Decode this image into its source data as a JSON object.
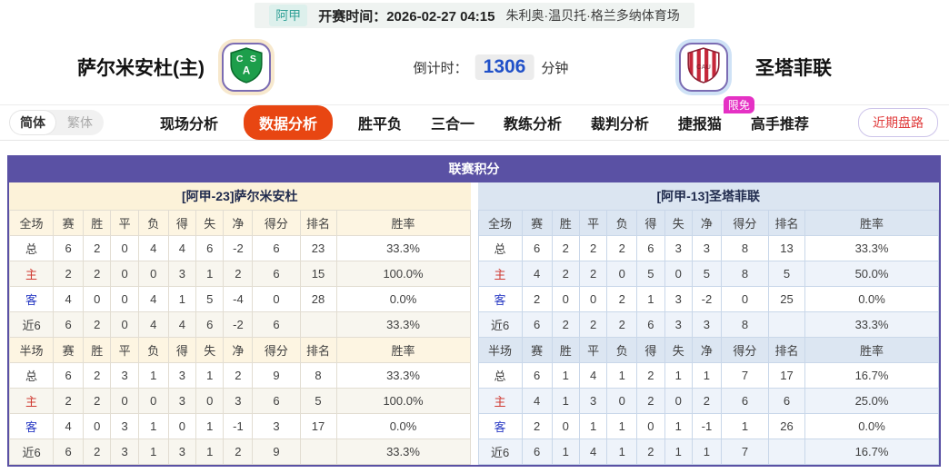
{
  "top_bar": {
    "league": "阿甲",
    "kickoff_label": "开赛时间：",
    "kickoff_time": "2026-02-27 04:15",
    "venue": "朱利奥·温贝托·格兰多纳体育场"
  },
  "header": {
    "home_team": "萨尔米安杜(主)",
    "away_team": "圣塔菲联",
    "countdown_label": "倒计时：",
    "countdown_value": "1306",
    "countdown_unit": "分钟"
  },
  "nav": {
    "lang_simplified": "简体",
    "lang_traditional": "繁体",
    "tabs": [
      "现场分析",
      "数据分析",
      "胜平负",
      "三合一",
      "教练分析",
      "裁判分析",
      "捷报猫",
      "高手推荐"
    ],
    "active_tab": "数据分析",
    "badge_free": "限免",
    "recent_button": "近期盘路"
  },
  "panel": {
    "title": "联赛积分",
    "left": {
      "subtitle": "[阿甲-23]萨尔米安杜",
      "full_header": [
        "全场",
        "赛",
        "胜",
        "平",
        "负",
        "得",
        "失",
        "净",
        "得分",
        "排名",
        "胜率"
      ],
      "full_rows": [
        [
          "总",
          "6",
          "2",
          "0",
          "4",
          "4",
          "6",
          "-2",
          "6",
          "23",
          "33.3%"
        ],
        [
          "主",
          "2",
          "2",
          "0",
          "0",
          "3",
          "1",
          "2",
          "6",
          "15",
          "100.0%"
        ],
        [
          "客",
          "4",
          "0",
          "0",
          "4",
          "1",
          "5",
          "-4",
          "0",
          "28",
          "0.0%"
        ],
        [
          "近6",
          "6",
          "2",
          "0",
          "4",
          "4",
          "6",
          "-2",
          "6",
          "",
          "33.3%"
        ]
      ],
      "half_header": [
        "半场",
        "赛",
        "胜",
        "平",
        "负",
        "得",
        "失",
        "净",
        "得分",
        "排名",
        "胜率"
      ],
      "half_rows": [
        [
          "总",
          "6",
          "2",
          "3",
          "1",
          "3",
          "1",
          "2",
          "9",
          "8",
          "33.3%"
        ],
        [
          "主",
          "2",
          "2",
          "0",
          "0",
          "3",
          "0",
          "3",
          "6",
          "5",
          "100.0%"
        ],
        [
          "客",
          "4",
          "0",
          "3",
          "1",
          "0",
          "1",
          "-1",
          "3",
          "17",
          "0.0%"
        ],
        [
          "近6",
          "6",
          "2",
          "3",
          "1",
          "3",
          "1",
          "2",
          "9",
          "",
          "33.3%"
        ]
      ]
    },
    "right": {
      "subtitle": "[阿甲-13]圣塔菲联",
      "full_header": [
        "全场",
        "赛",
        "胜",
        "平",
        "负",
        "得",
        "失",
        "净",
        "得分",
        "排名",
        "胜率"
      ],
      "full_rows": [
        [
          "总",
          "6",
          "2",
          "2",
          "2",
          "6",
          "3",
          "3",
          "8",
          "13",
          "33.3%"
        ],
        [
          "主",
          "4",
          "2",
          "2",
          "0",
          "5",
          "0",
          "5",
          "8",
          "5",
          "50.0%"
        ],
        [
          "客",
          "2",
          "0",
          "0",
          "2",
          "1",
          "3",
          "-2",
          "0",
          "25",
          "0.0%"
        ],
        [
          "近6",
          "6",
          "2",
          "2",
          "2",
          "6",
          "3",
          "3",
          "8",
          "",
          "33.3%"
        ]
      ],
      "half_header": [
        "半场",
        "赛",
        "胜",
        "平",
        "负",
        "得",
        "失",
        "净",
        "得分",
        "排名",
        "胜率"
      ],
      "half_rows": [
        [
          "总",
          "6",
          "1",
          "4",
          "1",
          "2",
          "1",
          "1",
          "7",
          "17",
          "16.7%"
        ],
        [
          "主",
          "4",
          "1",
          "3",
          "0",
          "2",
          "0",
          "2",
          "6",
          "6",
          "25.0%"
        ],
        [
          "客",
          "2",
          "0",
          "1",
          "1",
          "0",
          "1",
          "-1",
          "1",
          "26",
          "0.0%"
        ],
        [
          "近6",
          "6",
          "1",
          "4",
          "1",
          "2",
          "1",
          "1",
          "7",
          "",
          "16.7%"
        ]
      ]
    }
  },
  "colors": {
    "accent_purple": "#5A51A4",
    "active_tab_orange": "#E84612",
    "free_badge_pink": "#E531C4",
    "home_row_red": "#D03A31",
    "away_row_blue": "#2B3CC4",
    "countdown_blue": "#2050C8",
    "league_teal": "#36A399"
  }
}
